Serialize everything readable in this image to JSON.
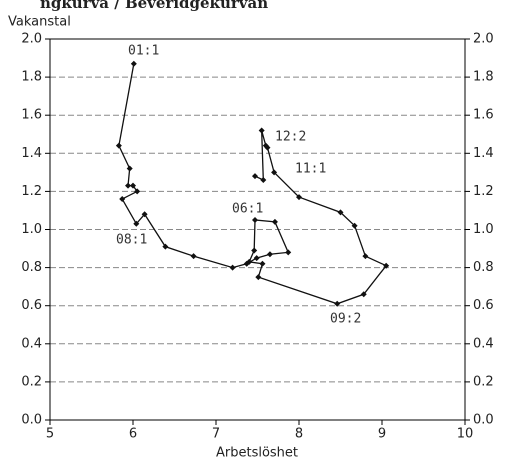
{
  "chart_data": {
    "type": "line",
    "title": "ngkurva / Beveridgekurvan",
    "y_label": "Vakanstal",
    "x_label": "Arbetslöshet",
    "x": [
      6.01,
      5.83,
      5.96,
      5.94,
      6.0,
      6.05,
      5.87,
      6.04,
      6.14,
      6.39,
      6.73,
      7.2,
      7.37,
      7.49,
      7.65,
      7.87,
      7.71,
      7.47,
      7.46,
      7.4,
      7.56,
      7.51,
      8.46,
      8.78,
      9.05,
      8.8,
      8.67,
      8.5,
      8.0,
      7.7,
      7.62,
      7.6,
      7.55,
      7.57,
      7.47
    ],
    "values": [
      1.87,
      1.44,
      1.32,
      1.23,
      1.23,
      1.2,
      1.16,
      1.03,
      1.08,
      0.91,
      0.86,
      0.8,
      0.82,
      0.85,
      0.87,
      0.88,
      1.04,
      1.05,
      0.89,
      0.83,
      0.82,
      0.75,
      0.61,
      0.66,
      0.81,
      0.86,
      1.02,
      1.09,
      1.17,
      1.3,
      1.43,
      1.44,
      1.52,
      1.26,
      1.28
    ],
    "color": "#111111",
    "annotations": [
      "01:1",
      "12:2",
      "11:1",
      "06:1",
      "08:1",
      "09:2"
    ],
    "xlim": [
      5,
      10
    ],
    "xticks": [
      5,
      6,
      7,
      8,
      9,
      10
    ],
    "ylim": [
      0,
      2
    ],
    "yticks": [
      {
        "value": 0,
        "label": "0.0"
      },
      {
        "value": 0.2,
        "label": "0.2"
      },
      {
        "value": 0.4,
        "label": "0.4"
      },
      {
        "value": 0.6,
        "label": "0.6"
      },
      {
        "value": 0.8,
        "label": "0.8"
      },
      {
        "value": 1,
        "label": "1.0"
      },
      {
        "value": 1.2,
        "label": "1.2"
      },
      {
        "value": 1.4,
        "label": "1.4"
      },
      {
        "value": 1.6,
        "label": "1.6"
      },
      {
        "value": 1.8,
        "label": "1.8"
      },
      {
        "value": 2,
        "label": "2.0"
      }
    ],
    "y2lim": [
      0,
      2
    ],
    "y2ticks": [
      {
        "value": 0,
        "label": "0.0"
      },
      {
        "value": 0.2,
        "label": "0.2"
      },
      {
        "value": 0.4,
        "label": "0.4"
      },
      {
        "value": 0.6,
        "label": "0.6"
      },
      {
        "value": 0.8,
        "label": "0.8"
      },
      {
        "value": 1,
        "label": "1.0"
      },
      {
        "value": 1.2,
        "label": "1.2"
      },
      {
        "value": 1.4,
        "label": "1.4"
      },
      {
        "value": 1.6,
        "label": "1.6"
      },
      {
        "value": 1.8,
        "label": "1.8"
      },
      {
        "value": 2,
        "label": "2.0"
      }
    ],
    "grid": true
  }
}
